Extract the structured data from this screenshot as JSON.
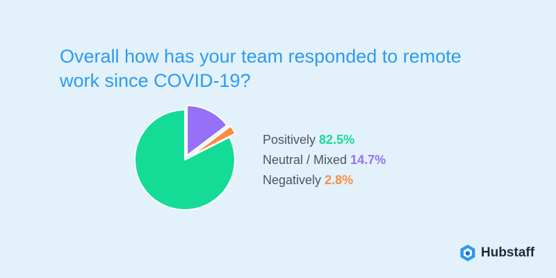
{
  "chart_data": {
    "type": "pie",
    "title": "Overall how has your team responded to remote work since COVID-19?",
    "slices": [
      {
        "label": "Positively",
        "value": 82.5,
        "display": "82.5%",
        "color": "#14dc96"
      },
      {
        "label": "Neutral / Mixed",
        "value": 14.7,
        "display": "14.7%",
        "color": "#9670f7"
      },
      {
        "label": "Negatively",
        "value": 2.8,
        "display": "2.8%",
        "color": "#fb8b43"
      }
    ],
    "exploded": [
      "Neutral / Mixed",
      "Negatively"
    ]
  },
  "brand": {
    "name": "Hubstaff",
    "icon": "hubstaff-logo-icon",
    "color": "#2b9bf0"
  }
}
